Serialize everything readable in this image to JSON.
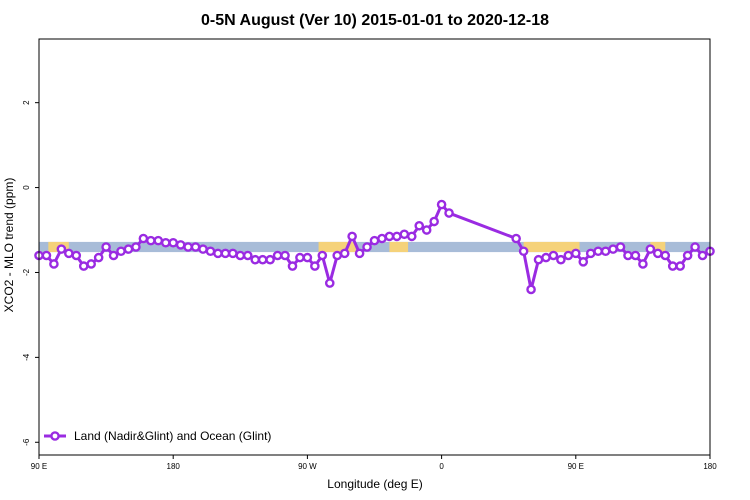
{
  "chart_data": {
    "type": "line",
    "title": "0-5N August (Ver 10)   2015-01-01 to 2020-12-18",
    "xlabel": "Longitude (deg E)",
    "ylabel": "XCO2 - MLO trend (ppm)",
    "xlim": [
      -90,
      270
    ],
    "ylim": [
      -6.3,
      3.5
    ],
    "x_ticks": [
      -90,
      -18,
      54,
      126,
      198,
      270
    ],
    "x_tick_labels": [
      "90 E",
      "180",
      "90 W",
      "0",
      "90 E",
      "180"
    ],
    "y_ticks": [
      -6,
      -4,
      -2,
      0,
      2
    ],
    "y_tick_labels": [
      "-6",
      "-4",
      "-2",
      "0",
      "2"
    ],
    "grid": false,
    "legend": {
      "position": "bottom-left",
      "entries": [
        "Land (Nadir&Glint) and Ocean (Glint)"
      ]
    },
    "colors": {
      "series": "#9a2be2",
      "ocean_band": "#a8bcd8",
      "land_band": "#f5d27a"
    },
    "reference_band": {
      "y_min": -1.52,
      "y_max": -1.28
    },
    "land_segments": [
      [
        -85,
        -74
      ],
      [
        60,
        80
      ],
      [
        98,
        108
      ],
      [
        170,
        200
      ],
      [
        238,
        246
      ]
    ],
    "series": [
      {
        "name": "Land (Nadir&Glint) and Ocean (Glint)",
        "x": [
          -90,
          -86,
          -82,
          -78,
          -74,
          -70,
          -66,
          -62,
          -58,
          -54,
          -50,
          -46,
          -42,
          -38,
          -34,
          -30,
          -26,
          -22,
          -18,
          -14,
          -10,
          -6,
          -2,
          2,
          6,
          10,
          14,
          18,
          22,
          26,
          30,
          34,
          38,
          42,
          46,
          50,
          54,
          58,
          62,
          66,
          70,
          74,
          78,
          82,
          86,
          90,
          94,
          98,
          102,
          106,
          110,
          114,
          118,
          122,
          126,
          130,
          166,
          170,
          174,
          178,
          182,
          186,
          190,
          194,
          198,
          202,
          206,
          210,
          214,
          218,
          222,
          226,
          230,
          234,
          238,
          242,
          246,
          250,
          254,
          258,
          262,
          266,
          270
        ],
        "y": [
          -1.6,
          -1.6,
          -1.8,
          -1.45,
          -1.55,
          -1.6,
          -1.85,
          -1.8,
          -1.65,
          -1.4,
          -1.6,
          -1.5,
          -1.45,
          -1.4,
          -1.2,
          -1.25,
          -1.25,
          -1.3,
          -1.3,
          -1.35,
          -1.4,
          -1.4,
          -1.45,
          -1.5,
          -1.55,
          -1.55,
          -1.55,
          -1.6,
          -1.6,
          -1.7,
          -1.7,
          -1.7,
          -1.6,
          -1.6,
          -1.85,
          -1.65,
          -1.65,
          -1.85,
          -1.6,
          -2.25,
          -1.6,
          -1.55,
          -1.15,
          -1.55,
          -1.4,
          -1.25,
          -1.2,
          -1.15,
          -1.15,
          -1.1,
          -1.15,
          -0.9,
          -1.0,
          -0.8,
          -0.4,
          -0.6,
          -1.2,
          -1.5,
          -2.4,
          -1.7,
          -1.65,
          -1.6,
          -1.7,
          -1.6,
          -1.55,
          -1.75,
          -1.55,
          -1.5,
          -1.5,
          -1.45,
          -1.4,
          -1.6,
          -1.6,
          -1.8,
          -1.45,
          -1.55,
          -1.6,
          -1.85,
          -1.85,
          -1.6,
          -1.4,
          -1.6,
          -1.5
        ]
      }
    ]
  }
}
